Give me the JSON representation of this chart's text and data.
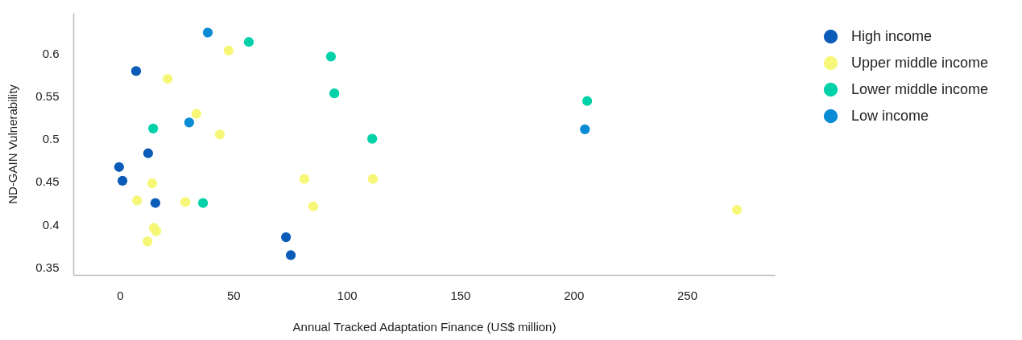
{
  "chart_data": {
    "type": "scatter",
    "xlabel": "Annual Tracked Adaptation Finance (US$ million)",
    "ylabel": "ND-GAIN Vulnerability",
    "xlim": [
      -20.6,
      288.7
    ],
    "ylim": [
      0.341,
      0.647
    ],
    "xticks": [
      0,
      50,
      100,
      150,
      200,
      250
    ],
    "yticks": [
      0.35,
      0.4,
      0.45,
      0.5,
      0.55,
      0.6
    ],
    "grid": false,
    "legend": "right",
    "marker": "circle",
    "series": [
      {
        "name": "High income",
        "color": "#0b5cb8",
        "x": [
          7.1,
          -0.4,
          1.1,
          12.4,
          15.6,
          73.2,
          75.3
        ],
        "values": [
          0.579,
          0.467,
          0.451,
          0.483,
          0.425,
          0.385,
          0.364
        ]
      },
      {
        "name": "Upper middle income",
        "color": "#f7f777",
        "x": [
          47.9,
          21.0,
          33.7,
          44.0,
          14.2,
          7.5,
          28.8,
          14.9,
          16.0,
          12.1,
          81.3,
          111.5,
          85.2,
          272
        ],
        "values": [
          0.603,
          0.57,
          0.529,
          0.505,
          0.448,
          0.428,
          0.426,
          0.396,
          0.392,
          0.38,
          0.453,
          0.453,
          0.421,
          0.417
        ]
      },
      {
        "name": "Lower middle income",
        "color": "#00d1a8",
        "x": [
          56.8,
          93.0,
          94.5,
          14.6,
          111.2,
          36.6,
          206
        ],
        "values": [
          0.613,
          0.596,
          0.553,
          0.512,
          0.5,
          0.425,
          0.544
        ]
      },
      {
        "name": "Low income",
        "color": "#0a8bd6",
        "x": [
          38.7,
          30.5,
          205
        ],
        "values": [
          0.624,
          0.519,
          0.511
        ]
      }
    ]
  }
}
